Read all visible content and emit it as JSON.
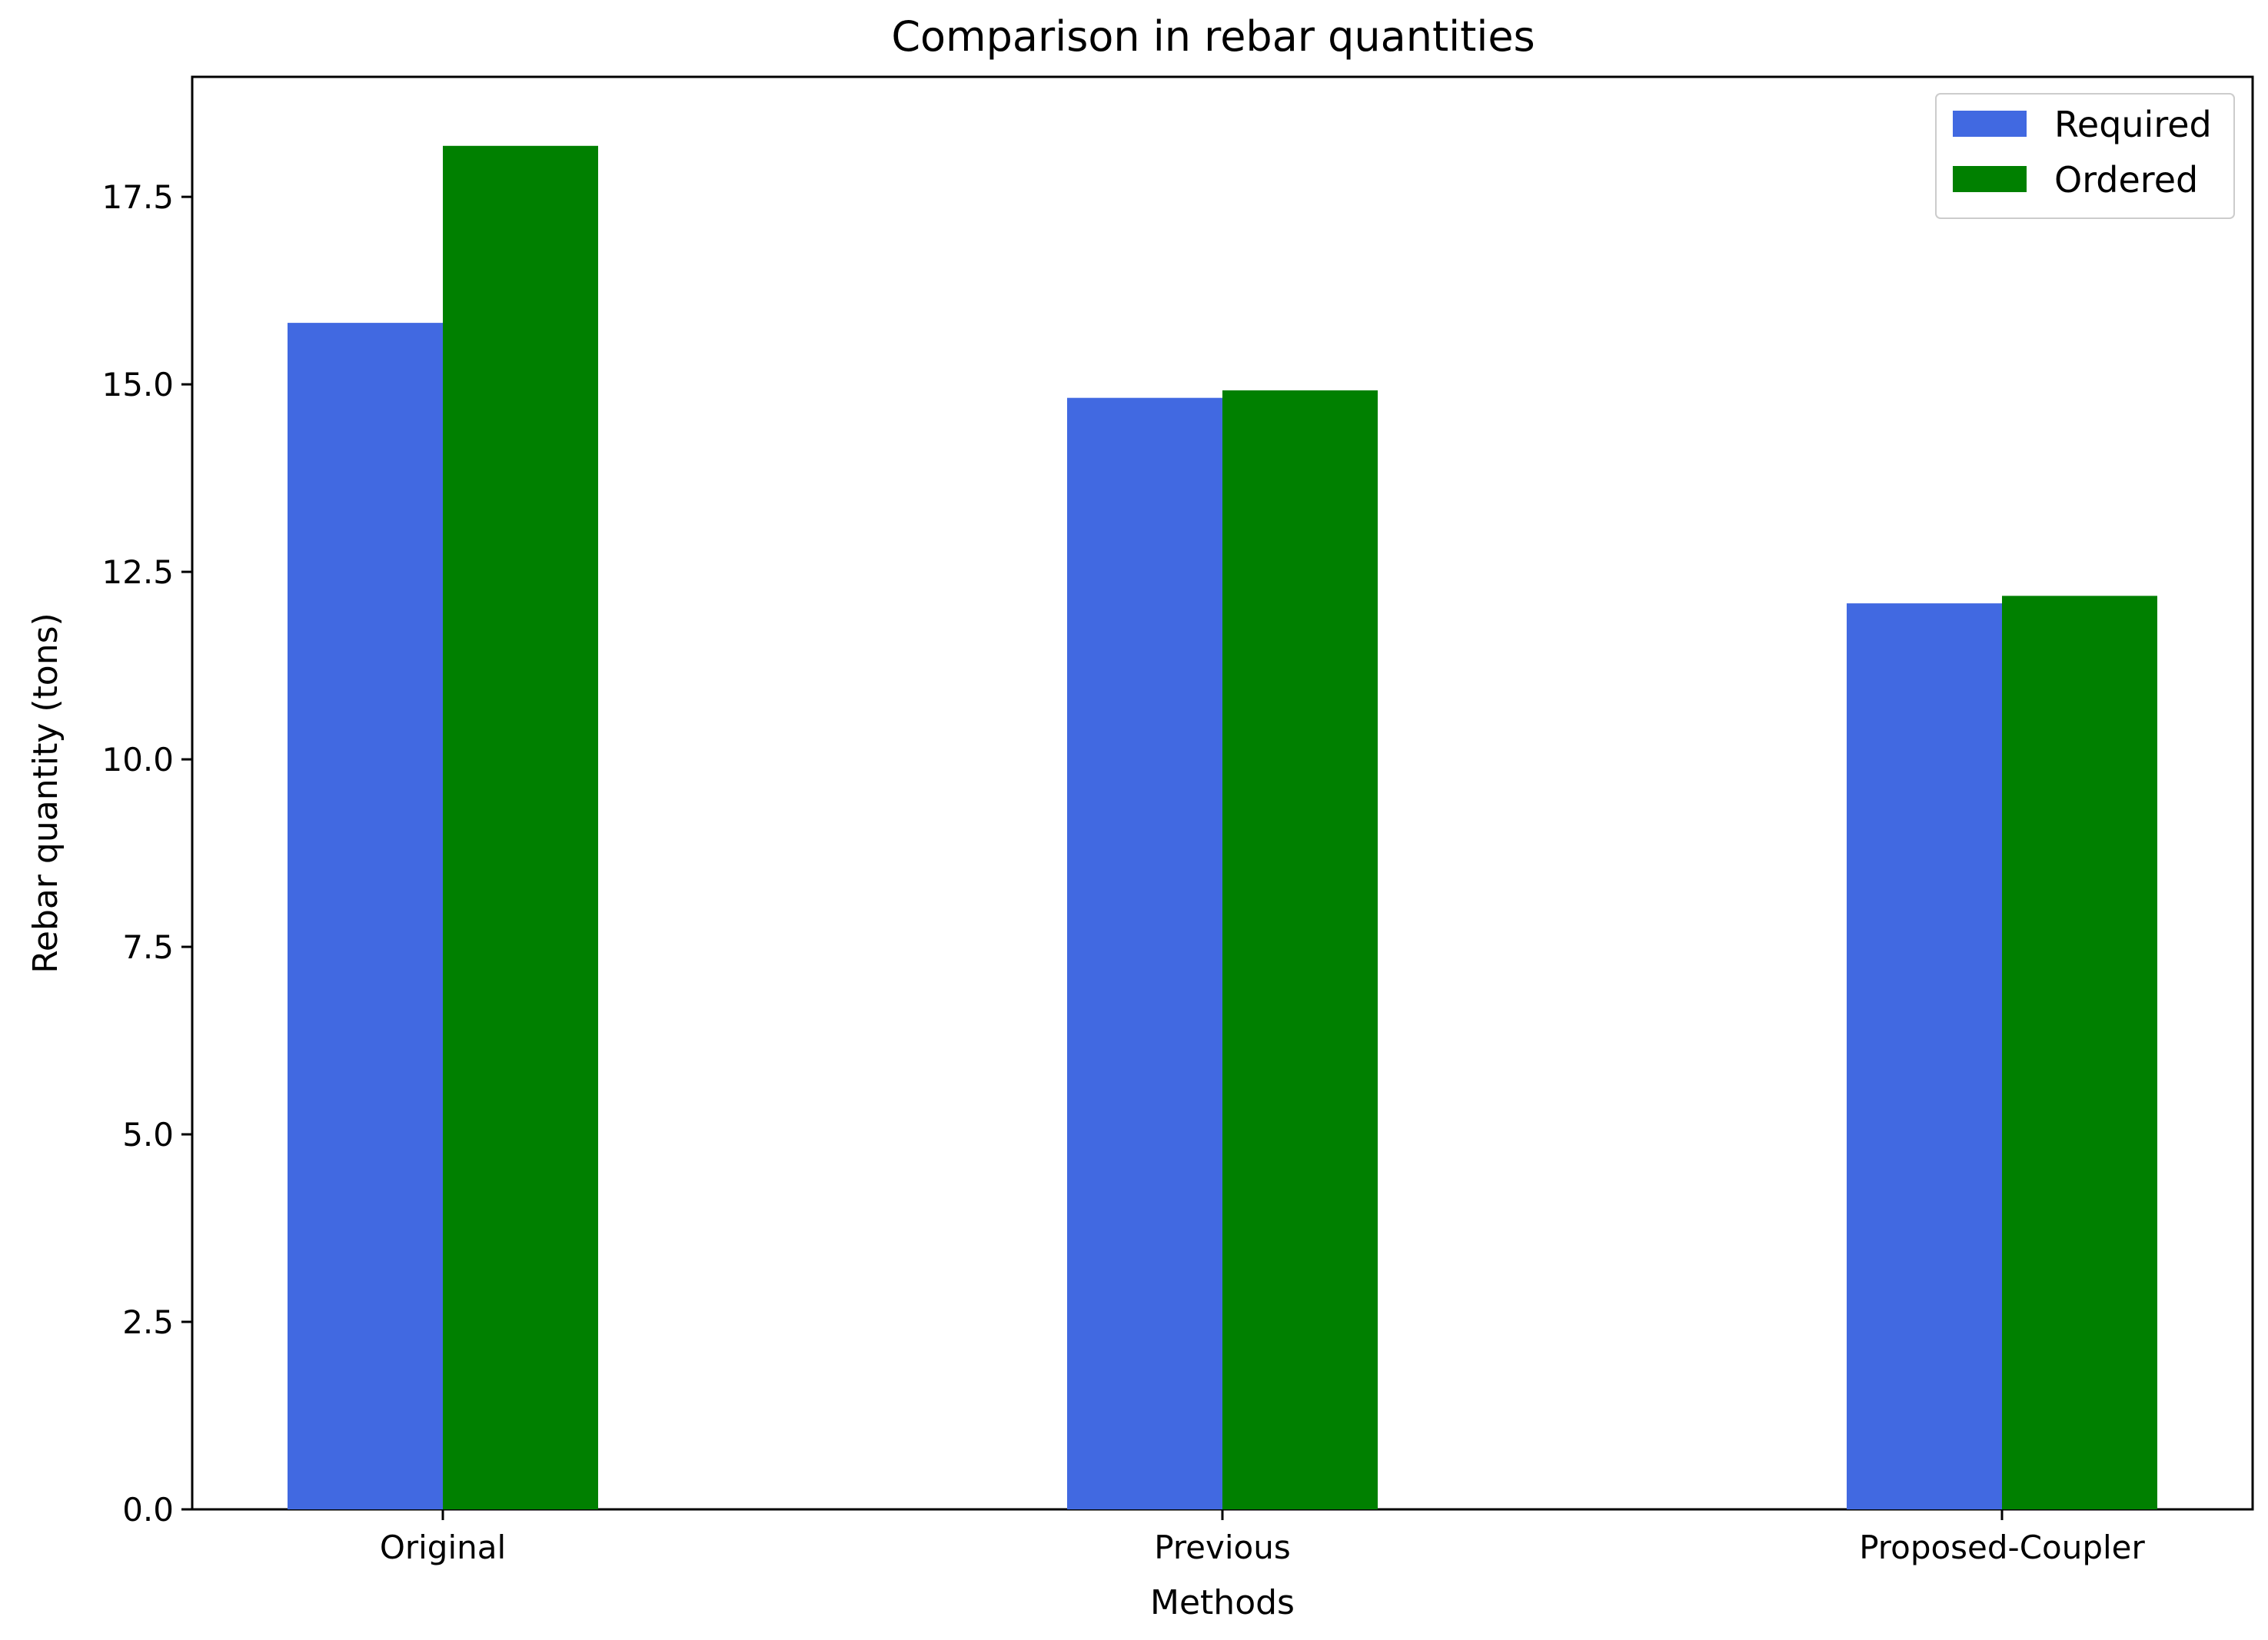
{
  "chart_data": {
    "type": "bar",
    "title": "Comparison in rebar quantities",
    "xlabel": "Methods",
    "ylabel": "Rebar quantity (tons)",
    "categories": [
      "Original",
      "Previous",
      "Proposed-Coupler"
    ],
    "series": [
      {
        "name": "Required",
        "color": "#4169E1",
        "values": [
          15.82,
          14.82,
          12.08
        ]
      },
      {
        "name": "Ordered",
        "color": "#008000",
        "values": [
          18.18,
          14.92,
          12.18
        ]
      }
    ],
    "ylim": [
      0,
      19.1
    ],
    "yticks": [
      0.0,
      2.5,
      5.0,
      7.5,
      10.0,
      12.5,
      15.0,
      17.5
    ],
    "ytick_labels": [
      "0.0",
      "2.5",
      "5.0",
      "7.5",
      "10.0",
      "12.5",
      "15.0",
      "17.5"
    ],
    "grid": false,
    "legend_position": "top-right"
  }
}
